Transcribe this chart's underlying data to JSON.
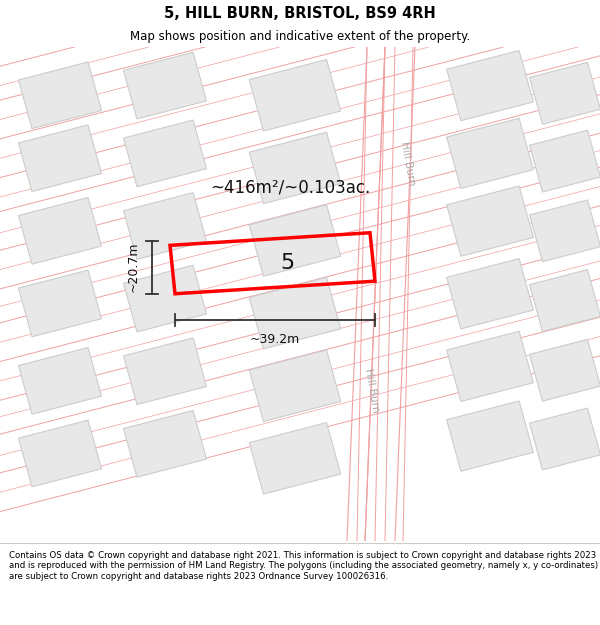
{
  "title": "5, HILL BURN, BRISTOL, BS9 4RH",
  "subtitle": "Map shows position and indicative extent of the property.",
  "footer": "Contains OS data © Crown copyright and database right 2021. This information is subject to Crown copyright and database rights 2023 and is reproduced with the permission of HM Land Registry. The polygons (including the associated geometry, namely x, y co-ordinates) are subject to Crown copyright and database rights 2023 Ordnance Survey 100026316.",
  "area_label": "~416m²/~0.103ac.",
  "width_label": "~39.2m",
  "height_label": "~20.7m",
  "plot_number": "5",
  "background_color": "#f5f5f5",
  "map_background": "#ffffff",
  "block_color": "#e8e8e8",
  "block_edge_color": "#cccccc",
  "road_line_color": "#f0a0a0",
  "highlight_color": "#ff0000",
  "street_label_color": "#aaaaaa",
  "title_color": "#000000",
  "footer_color": "#000000",
  "dim_color": "#333333"
}
